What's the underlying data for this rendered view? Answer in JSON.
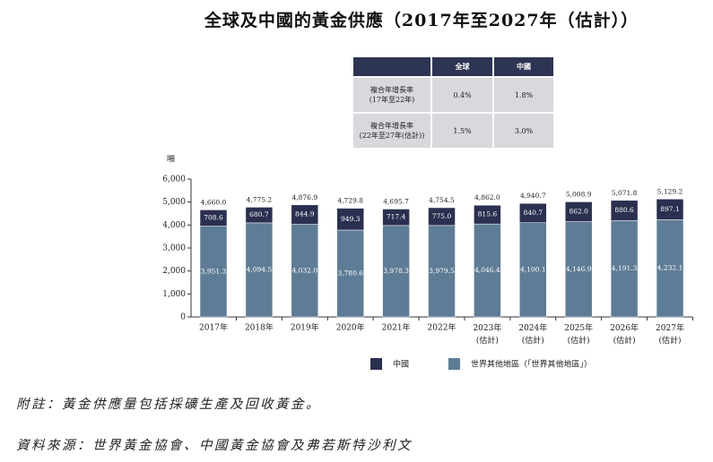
{
  "title": "全球及中國的黃金供應（2017年至2027年（估計））",
  "table": {
    "header": [
      "",
      "全球",
      "中國"
    ],
    "rows": [
      [
        "複合年增長率\n(17年至22年)",
        "0.4%",
        "1.8%"
      ],
      [
        "複合年增長率\n(22年至27年(估計))",
        "1.5%",
        "3.0%"
      ]
    ]
  },
  "chart_data": {
    "type": "stacked_bar",
    "y_label": "噸",
    "categories": [
      "2017年",
      "2018年",
      "2019年",
      "2020年",
      "2021年",
      "2022年",
      "2023年\n(估計)",
      "2024年\n(估計)",
      "2025年\n(估計)",
      "2026年\n(估計)",
      "2027年\n(估計)"
    ],
    "series": [
      {
        "name": "中國",
        "color": "#2b3050",
        "values": [
          708.6,
          680.7,
          844.9,
          949.3,
          717.4,
          775.0,
          815.6,
          840.7,
          862.0,
          880.6,
          897.1
        ],
        "value_labels": [
          "708.6",
          "680.7",
          "844.9",
          "949.3",
          "717.4",
          "775.0",
          "815.6",
          "840.7",
          "862.0",
          "880.6",
          "897.1"
        ]
      },
      {
        "name": "世界其他地區（「世界其他地區」）",
        "color": "#5e7c95",
        "values": [
          3951.3,
          4094.5,
          4032.0,
          3780.6,
          3978.3,
          3979.5,
          4046.4,
          4100.1,
          4146.9,
          4191.3,
          4232.1
        ],
        "value_labels": [
          "3,951.3",
          "4,094.5",
          "4,032.0",
          "3,780.6",
          "3,978.3",
          "3,979.5",
          "4,046.4",
          "4,100.1",
          "4,146.9",
          "4,191.3",
          "4,232.1"
        ]
      }
    ],
    "totals": {
      "values": [
        4660.0,
        4775.2,
        4876.9,
        4729.8,
        4695.7,
        4754.5,
        4862.0,
        4940.7,
        5008.9,
        5071.8,
        5129.2
      ],
      "value_labels": [
        "4,660.0",
        "4,775.2",
        "4,876.9",
        "4,729.8",
        "4,695.7",
        "4,754.5",
        "4,862.0",
        "4,940.7",
        "5,008.9",
        "5,071.8",
        "5,129.2"
      ]
    },
    "ylim": [
      0,
      6000
    ],
    "yticks": [
      0,
      {
        "value": 1000,
        "label": "1,000"
      },
      {
        "value": 2000,
        "label": "2,000"
      },
      {
        "value": 3000,
        "label": "3,000"
      },
      {
        "value": 4000,
        "label": "4,000"
      },
      {
        "value": 5000,
        "label": "5,000"
      },
      {
        "value": 6000,
        "label": "6,000"
      }
    ]
  },
  "notes": [
    "附註：黃金供應量包括採礦生產及回收黃金。",
    "資料來源：世界黃金協會、中國黃金協會及弗若斯特沙利文"
  ]
}
